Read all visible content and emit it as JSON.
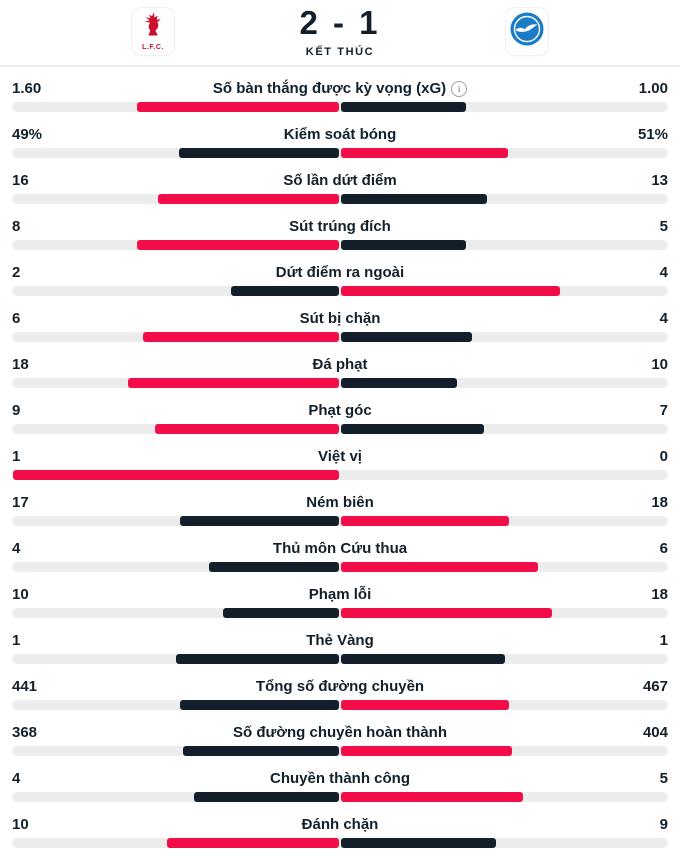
{
  "header": {
    "score": "2 - 1",
    "status": "KẾT THÚC",
    "home_badge_text": "L.F.C."
  },
  "colors": {
    "stat_winner_red": "#f20d49",
    "stat_loser_dark": "#13202b",
    "track_gray": "#ececec",
    "divider_gray": "#ececec",
    "lfc_red": "#c8102e",
    "brighton_blue": "#1b7bc4"
  },
  "stats": [
    {
      "label": "Số bàn thắng được kỳ vọng (xG)",
      "home": "1.60",
      "away": "1.00",
      "home_val": 1.6,
      "away_val": 1.0,
      "info": true
    },
    {
      "label": "Kiểm soát bóng",
      "home": "49%",
      "away": "51%",
      "home_val": 49,
      "away_val": 51
    },
    {
      "label": "Số lần dứt điểm",
      "home": "16",
      "away": "13",
      "home_val": 16,
      "away_val": 13
    },
    {
      "label": "Sút trúng đích",
      "home": "8",
      "away": "5",
      "home_val": 8,
      "away_val": 5
    },
    {
      "label": "Dứt điểm ra ngoài",
      "home": "2",
      "away": "4",
      "home_val": 2,
      "away_val": 4
    },
    {
      "label": "Sút bị chặn",
      "home": "6",
      "away": "4",
      "home_val": 6,
      "away_val": 4
    },
    {
      "label": "Đá phạt",
      "home": "18",
      "away": "10",
      "home_val": 18,
      "away_val": 10
    },
    {
      "label": "Phạt góc",
      "home": "9",
      "away": "7",
      "home_val": 9,
      "away_val": 7
    },
    {
      "label": "Việt vị",
      "home": "1",
      "away": "0",
      "home_val": 1,
      "away_val": 0
    },
    {
      "label": "Ném biên",
      "home": "17",
      "away": "18",
      "home_val": 17,
      "away_val": 18
    },
    {
      "label": "Thủ môn Cứu thua",
      "home": "4",
      "away": "6",
      "home_val": 4,
      "away_val": 6
    },
    {
      "label": "Phạm lỗi",
      "home": "10",
      "away": "18",
      "home_val": 10,
      "away_val": 18
    },
    {
      "label": "Thẻ Vàng",
      "home": "1",
      "away": "1",
      "home_val": 1,
      "away_val": 1
    },
    {
      "label": "Tổng số đường chuyền",
      "home": "441",
      "away": "467",
      "home_val": 441,
      "away_val": 467
    },
    {
      "label": "Số đường chuyền hoàn thành",
      "home": "368",
      "away": "404",
      "home_val": 368,
      "away_val": 404
    },
    {
      "label": "Chuyền thành công",
      "home": "4",
      "away": "5",
      "home_val": 4,
      "away_val": 5
    },
    {
      "label": "Đánh chặn",
      "home": "10",
      "away": "9",
      "home_val": 10,
      "away_val": 9
    }
  ]
}
